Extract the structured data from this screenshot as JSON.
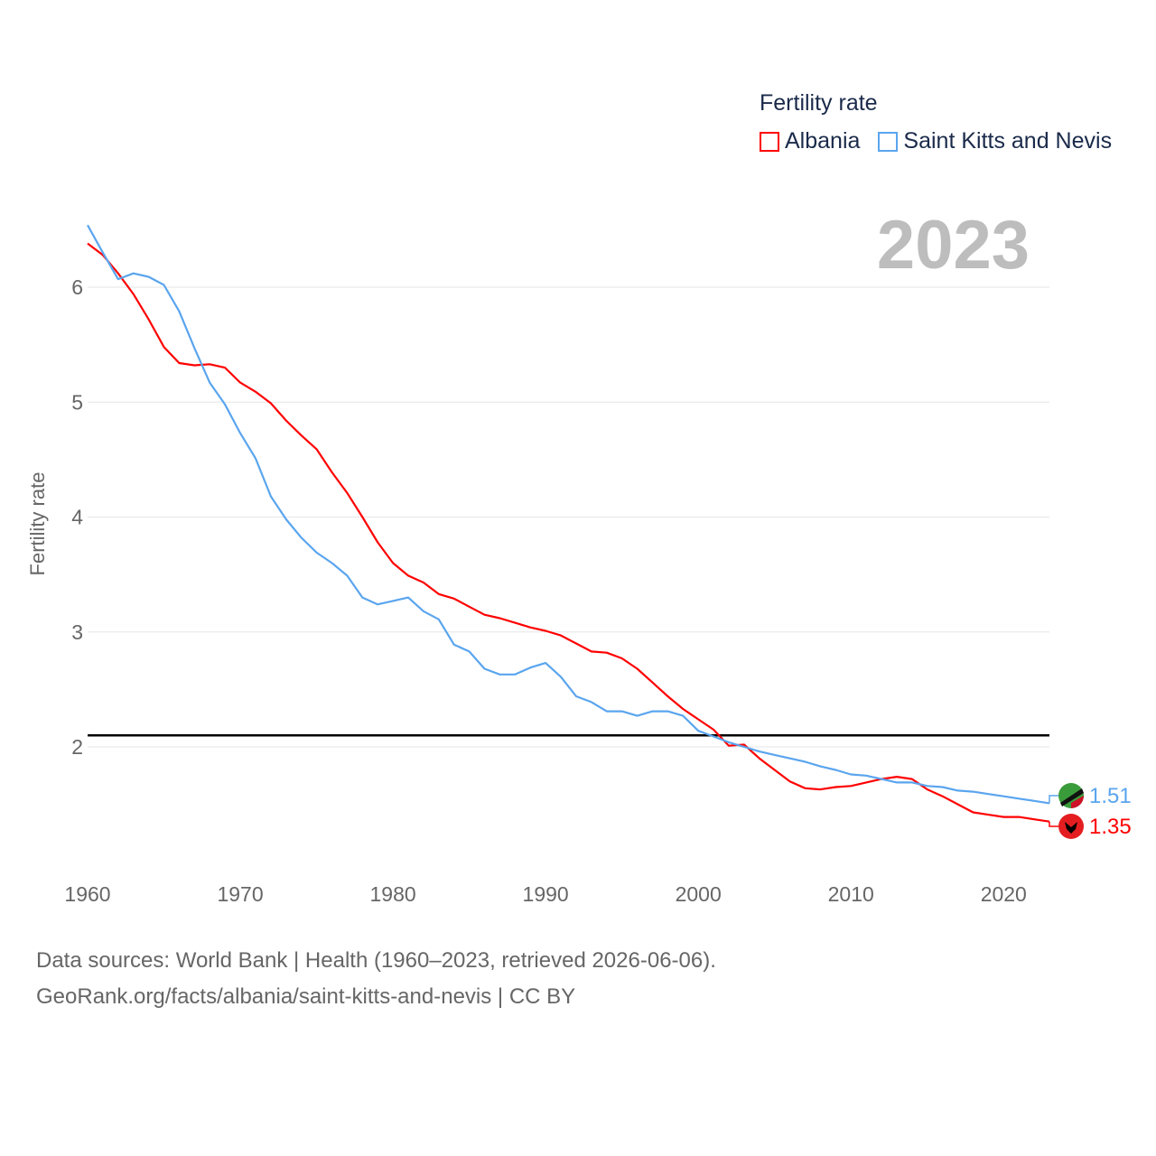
{
  "chart_data": {
    "type": "line",
    "title": "Fertility rate",
    "year_label": "2023",
    "xlabel": "",
    "ylabel": "Fertility rate",
    "xlim": [
      1960,
      2023
    ],
    "ylim": [
      1.0,
      6.75
    ],
    "x_ticks": [
      "1960",
      "1970",
      "1980",
      "1990",
      "2000",
      "2010",
      "2020"
    ],
    "y_ticks": [
      "2",
      "3",
      "4",
      "5",
      "6"
    ],
    "grid": true,
    "legend_placement": "top-right",
    "reference_line": 2.1,
    "x": [
      1960,
      1961,
      1962,
      1963,
      1964,
      1965,
      1966,
      1967,
      1968,
      1969,
      1970,
      1971,
      1972,
      1973,
      1974,
      1975,
      1976,
      1977,
      1978,
      1979,
      1980,
      1981,
      1982,
      1983,
      1984,
      1985,
      1986,
      1987,
      1988,
      1989,
      1990,
      1991,
      1992,
      1993,
      1994,
      1995,
      1996,
      1997,
      1998,
      1999,
      2000,
      2001,
      2002,
      2003,
      2004,
      2005,
      2006,
      2007,
      2008,
      2009,
      2010,
      2011,
      2012,
      2013,
      2014,
      2015,
      2016,
      2017,
      2018,
      2019,
      2020,
      2021,
      2022,
      2023
    ],
    "series": [
      {
        "name": "Albania",
        "color": "#ff0000",
        "end_label": "1.35",
        "values": [
          6.38,
          6.28,
          6.12,
          5.94,
          5.72,
          5.48,
          5.34,
          5.32,
          5.33,
          5.3,
          5.17,
          5.09,
          4.99,
          4.84,
          4.71,
          4.59,
          4.39,
          4.21,
          4.0,
          3.78,
          3.6,
          3.49,
          3.43,
          3.33,
          3.29,
          3.22,
          3.15,
          3.12,
          3.08,
          3.04,
          3.01,
          2.97,
          2.9,
          2.83,
          2.82,
          2.77,
          2.68,
          2.56,
          2.44,
          2.33,
          2.24,
          2.15,
          2.01,
          2.02,
          1.9,
          1.8,
          1.7,
          1.64,
          1.63,
          1.65,
          1.66,
          1.69,
          1.72,
          1.74,
          1.72,
          1.63,
          1.57,
          1.5,
          1.43,
          1.41,
          1.39,
          1.39,
          1.37,
          1.35
        ]
      },
      {
        "name": "Saint Kitts and Nevis",
        "color": "#5aa5ee",
        "end_label": "1.51",
        "values": [
          6.54,
          6.3,
          6.07,
          6.12,
          6.09,
          6.02,
          5.79,
          5.47,
          5.17,
          4.98,
          4.73,
          4.51,
          4.18,
          3.98,
          3.82,
          3.69,
          3.6,
          3.49,
          3.3,
          3.24,
          3.27,
          3.3,
          3.18,
          3.11,
          2.89,
          2.83,
          2.68,
          2.63,
          2.63,
          2.69,
          2.73,
          2.61,
          2.44,
          2.39,
          2.31,
          2.31,
          2.27,
          2.31,
          2.31,
          2.27,
          2.14,
          2.09,
          2.04,
          2.0,
          1.96,
          1.93,
          1.9,
          1.87,
          1.83,
          1.8,
          1.76,
          1.75,
          1.72,
          1.69,
          1.69,
          1.66,
          1.65,
          1.62,
          1.61,
          1.59,
          1.57,
          1.55,
          1.53,
          1.51
        ]
      }
    ]
  },
  "footer": {
    "line1": "Data sources: World Bank | Health (1960–2023, retrieved 2026-06-06).",
    "line2": "GeoRank.org/facts/albania/saint-kitts-and-nevis | CC BY"
  }
}
